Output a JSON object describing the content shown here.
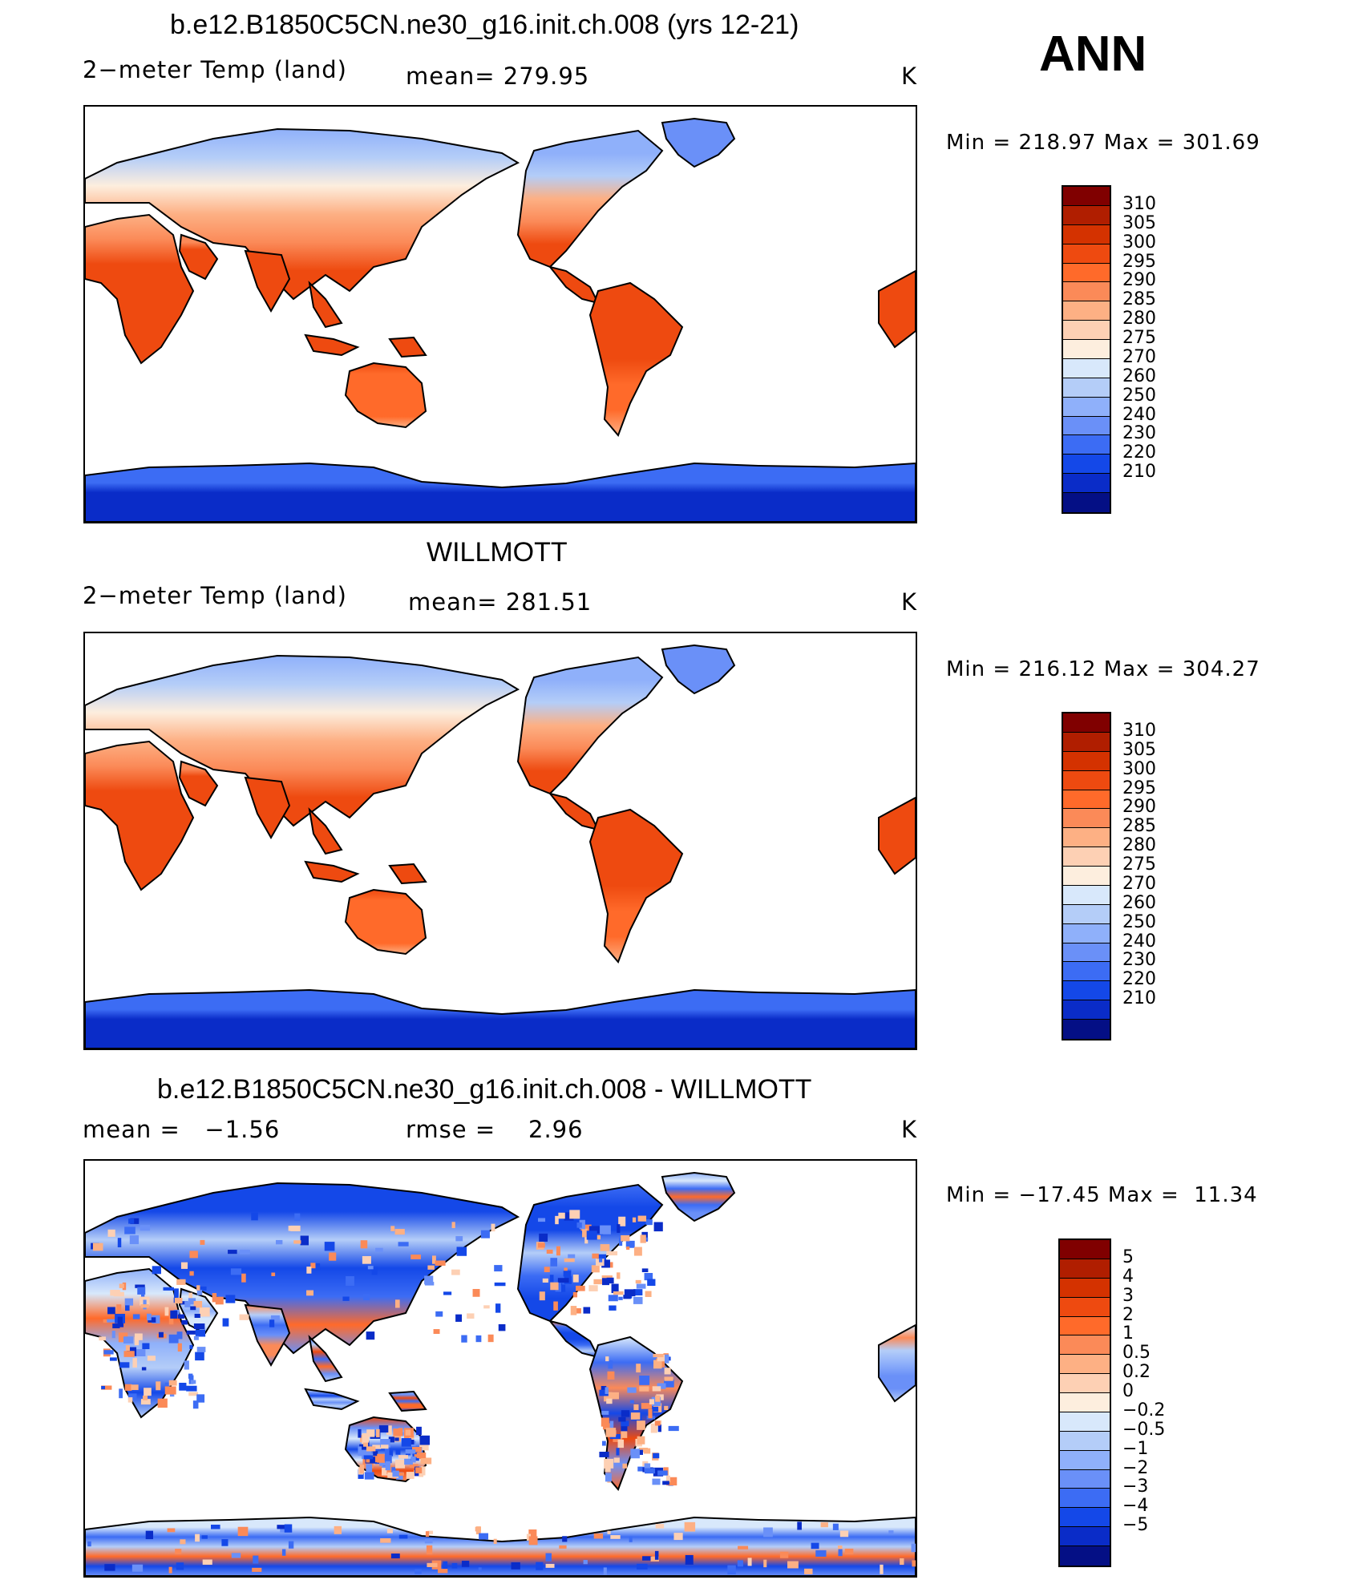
{
  "season": "ANN",
  "panels": [
    {
      "title": "b.e12.B1850C5CN.ne30_g16.init.ch.008 (yrs 12-21)",
      "left_label": "2−meter Temp (land)",
      "stat_label": "mean= 279.95",
      "units": "K",
      "minmax": "Min = 218.97 Max = 301.69",
      "levels": [
        "310",
        "305",
        "300",
        "295",
        "290",
        "285",
        "280",
        "275",
        "270",
        "260",
        "250",
        "240",
        "230",
        "220",
        "210"
      ],
      "colors": [
        "#800000",
        "#b01e00",
        "#d43200",
        "#ee4a10",
        "#ff6a2a",
        "#fb8a58",
        "#fdb084",
        "#fdd0b4",
        "#fdeede",
        "#d8e8fb",
        "#b4cdf8",
        "#8fb0fa",
        "#6a90f8",
        "#3c6cf4",
        "#1448e8",
        "#0a2cc8",
        "#040f85"
      ],
      "map_style": "model"
    },
    {
      "title": "WILLMOTT",
      "left_label": "2−meter Temp (land)",
      "stat_label": "mean= 281.51",
      "units": "K",
      "minmax": "Min = 216.12 Max = 304.27",
      "levels": [
        "310",
        "305",
        "300",
        "295",
        "290",
        "285",
        "280",
        "275",
        "270",
        "260",
        "250",
        "240",
        "230",
        "220",
        "210"
      ],
      "colors": [
        "#800000",
        "#b01e00",
        "#d43200",
        "#ee4a10",
        "#ff6a2a",
        "#fb8a58",
        "#fdb084",
        "#fdd0b4",
        "#fdeede",
        "#d8e8fb",
        "#b4cdf8",
        "#8fb0fa",
        "#6a90f8",
        "#3c6cf4",
        "#1448e8",
        "#0a2cc8",
        "#040f85"
      ],
      "map_style": "obs"
    },
    {
      "title": "b.e12.B1850C5CN.ne30_g16.init.ch.008 - WILLMOTT",
      "left_label": "mean =   −1.56",
      "stat_label": "rmse =    2.96",
      "units": "K",
      "minmax": "Min = −17.45 Max =  11.34",
      "levels": [
        "5",
        "4",
        "3",
        "2",
        "1",
        "0.5",
        "0.2",
        "0",
        "−0.2",
        "−0.5",
        "−1",
        "−2",
        "−3",
        "−4",
        "−5"
      ],
      "colors": [
        "#800000",
        "#b01e00",
        "#d43200",
        "#ee4a10",
        "#ff6a2a",
        "#fb8a58",
        "#fdb084",
        "#fdd0b4",
        "#fdeede",
        "#d8e8fb",
        "#b4cdf8",
        "#8fb0fa",
        "#6a90f8",
        "#3c6cf4",
        "#1448e8",
        "#0a2cc8",
        "#040f85"
      ],
      "map_style": "diff"
    }
  ]
}
